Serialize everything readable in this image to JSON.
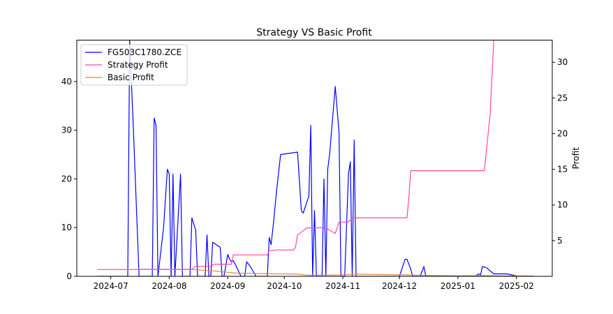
{
  "chart_data": {
    "type": "line",
    "title": "Strategy VS Basic Profit",
    "xlabel": "",
    "ylabel_left": "",
    "ylabel_right": "Profit",
    "x_ticks": [
      "2024-07",
      "2024-08",
      "2024-09",
      "2024-10",
      "2024-11",
      "2024-12",
      "2025-01",
      "2025-02"
    ],
    "y_left_ticks": [
      0,
      10,
      20,
      30,
      40
    ],
    "y_right_ticks": [
      5,
      10,
      15,
      20,
      25,
      30
    ],
    "x_range": [
      "2024-06-13",
      "2025-02-20"
    ],
    "y_left_range": [
      0,
      48.5
    ],
    "y_right_range": [
      0,
      33.1
    ],
    "grid": false,
    "legend_position": "top-left",
    "series": [
      {
        "name": "FG503C1780.ZCE",
        "axis": "left",
        "color": "#0000ff",
        "points": [
          [
            "2024-06-24",
            0
          ],
          [
            "2024-07-10",
            0
          ],
          [
            "2024-07-11",
            48.5
          ],
          [
            "2024-07-13",
            30
          ],
          [
            "2024-07-14",
            20
          ],
          [
            "2024-07-16",
            0
          ],
          [
            "2024-07-23",
            0
          ],
          [
            "2024-07-24",
            32.5
          ],
          [
            "2024-07-25",
            31
          ],
          [
            "2024-07-26",
            0
          ],
          [
            "2024-07-29",
            10
          ],
          [
            "2024-07-31",
            22
          ],
          [
            "2024-08-01",
            21
          ],
          [
            "2024-08-02",
            0
          ],
          [
            "2024-08-03",
            21
          ],
          [
            "2024-08-04",
            0
          ],
          [
            "2024-08-07",
            21
          ],
          [
            "2024-08-08",
            0
          ],
          [
            "2024-08-12",
            0
          ],
          [
            "2024-08-13",
            12
          ],
          [
            "2024-08-15",
            9.5
          ],
          [
            "2024-08-16",
            0
          ],
          [
            "2024-08-20",
            0
          ],
          [
            "2024-08-21",
            8.5
          ],
          [
            "2024-08-22",
            0
          ],
          [
            "2024-08-23",
            0
          ],
          [
            "2024-08-24",
            7
          ],
          [
            "2024-08-27",
            6.2
          ],
          [
            "2024-08-28",
            6
          ],
          [
            "2024-08-29",
            0
          ],
          [
            "2024-08-30",
            0
          ],
          [
            "2024-09-01",
            4.5
          ],
          [
            "2024-09-02",
            3.5
          ],
          [
            "2024-09-03",
            3
          ],
          [
            "2024-09-04",
            3.2
          ],
          [
            "2024-09-05",
            2.5
          ],
          [
            "2024-09-08",
            0
          ],
          [
            "2024-09-10",
            0
          ],
          [
            "2024-09-11",
            3
          ],
          [
            "2024-09-13",
            2
          ],
          [
            "2024-09-16",
            0
          ],
          [
            "2024-09-22",
            0
          ],
          [
            "2024-09-23",
            8
          ],
          [
            "2024-09-24",
            6.5
          ],
          [
            "2024-09-25",
            10
          ],
          [
            "2024-09-27",
            18
          ],
          [
            "2024-09-29",
            25
          ],
          [
            "2024-10-08",
            25.5
          ],
          [
            "2024-10-10",
            13.5
          ],
          [
            "2024-10-11",
            13
          ],
          [
            "2024-10-14",
            16.5
          ],
          [
            "2024-10-15",
            31
          ],
          [
            "2024-10-16",
            0
          ],
          [
            "2024-10-17",
            13.5
          ],
          [
            "2024-10-18",
            0
          ],
          [
            "2024-10-21",
            0
          ],
          [
            "2024-10-22",
            20
          ],
          [
            "2024-10-23",
            0
          ],
          [
            "2024-10-24",
            22
          ],
          [
            "2024-10-25",
            25
          ],
          [
            "2024-10-28",
            39
          ],
          [
            "2024-10-30",
            29.5
          ],
          [
            "2024-10-31",
            0
          ],
          [
            "2024-11-02",
            0
          ],
          [
            "2024-11-04",
            21
          ],
          [
            "2024-11-05",
            23.5
          ],
          [
            "2024-11-06",
            0
          ],
          [
            "2024-11-07",
            28
          ],
          [
            "2024-11-08",
            0
          ],
          [
            "2024-12-01",
            0
          ],
          [
            "2024-12-04",
            3.5
          ],
          [
            "2024-12-05",
            3.5
          ],
          [
            "2024-12-07",
            1.5
          ],
          [
            "2024-12-08",
            0
          ],
          [
            "2024-12-12",
            0
          ],
          [
            "2024-12-14",
            2
          ],
          [
            "2024-12-15",
            0
          ],
          [
            "2025-01-10",
            0
          ],
          [
            "2025-01-12",
            0.5
          ],
          [
            "2025-01-13",
            0.3
          ],
          [
            "2025-01-14",
            2
          ],
          [
            "2025-01-16",
            1.8
          ],
          [
            "2025-01-20",
            0.5
          ],
          [
            "2025-01-27",
            0.5
          ],
          [
            "2025-02-02",
            0
          ],
          [
            "2025-02-10",
            0
          ]
        ]
      },
      {
        "name": "Strategy Profit",
        "axis": "right",
        "color": "#ff44aa",
        "points": [
          [
            "2024-06-24",
            0.95
          ],
          [
            "2024-07-15",
            0.95
          ],
          [
            "2024-07-16",
            1.0
          ],
          [
            "2024-08-13",
            1.0
          ],
          [
            "2024-08-15",
            1.4
          ],
          [
            "2024-08-23",
            1.4
          ],
          [
            "2024-08-25",
            1.7
          ],
          [
            "2024-09-03",
            1.7
          ],
          [
            "2024-09-04",
            3.0
          ],
          [
            "2024-09-22",
            3.0
          ],
          [
            "2024-09-23",
            3.6
          ],
          [
            "2024-09-27",
            3.7
          ],
          [
            "2024-10-06",
            3.7
          ],
          [
            "2024-10-07",
            4.2
          ],
          [
            "2024-10-08",
            5.8
          ],
          [
            "2024-10-13",
            6.8
          ],
          [
            "2024-10-23",
            6.8
          ],
          [
            "2024-10-28",
            6.0
          ],
          [
            "2024-10-30",
            7.6
          ],
          [
            "2024-11-04",
            7.6
          ],
          [
            "2024-11-06",
            8.2
          ],
          [
            "2024-12-05",
            8.2
          ],
          [
            "2024-12-06",
            11.0
          ],
          [
            "2024-12-07",
            14.8
          ],
          [
            "2025-01-15",
            14.8
          ],
          [
            "2025-01-18",
            22.5
          ],
          [
            "2025-01-20",
            33.1
          ]
        ]
      },
      {
        "name": "Basic Profit",
        "axis": "right",
        "color": "#dd8844",
        "points": [
          [
            "2024-06-24",
            0.95
          ],
          [
            "2024-08-13",
            0.95
          ],
          [
            "2024-08-25",
            0.75
          ],
          [
            "2024-09-05",
            0.45
          ],
          [
            "2024-09-25",
            0.35
          ],
          [
            "2024-10-08",
            0.3
          ],
          [
            "2024-10-14",
            0.15
          ],
          [
            "2024-10-31",
            0.2
          ],
          [
            "2024-11-07",
            0.3
          ],
          [
            "2024-12-05",
            0.2
          ],
          [
            "2024-12-12",
            0.15
          ],
          [
            "2025-01-01",
            0.08
          ],
          [
            "2025-01-14",
            0.1
          ],
          [
            "2025-01-27",
            0.05
          ],
          [
            "2025-02-10",
            0.05
          ]
        ]
      }
    ]
  }
}
